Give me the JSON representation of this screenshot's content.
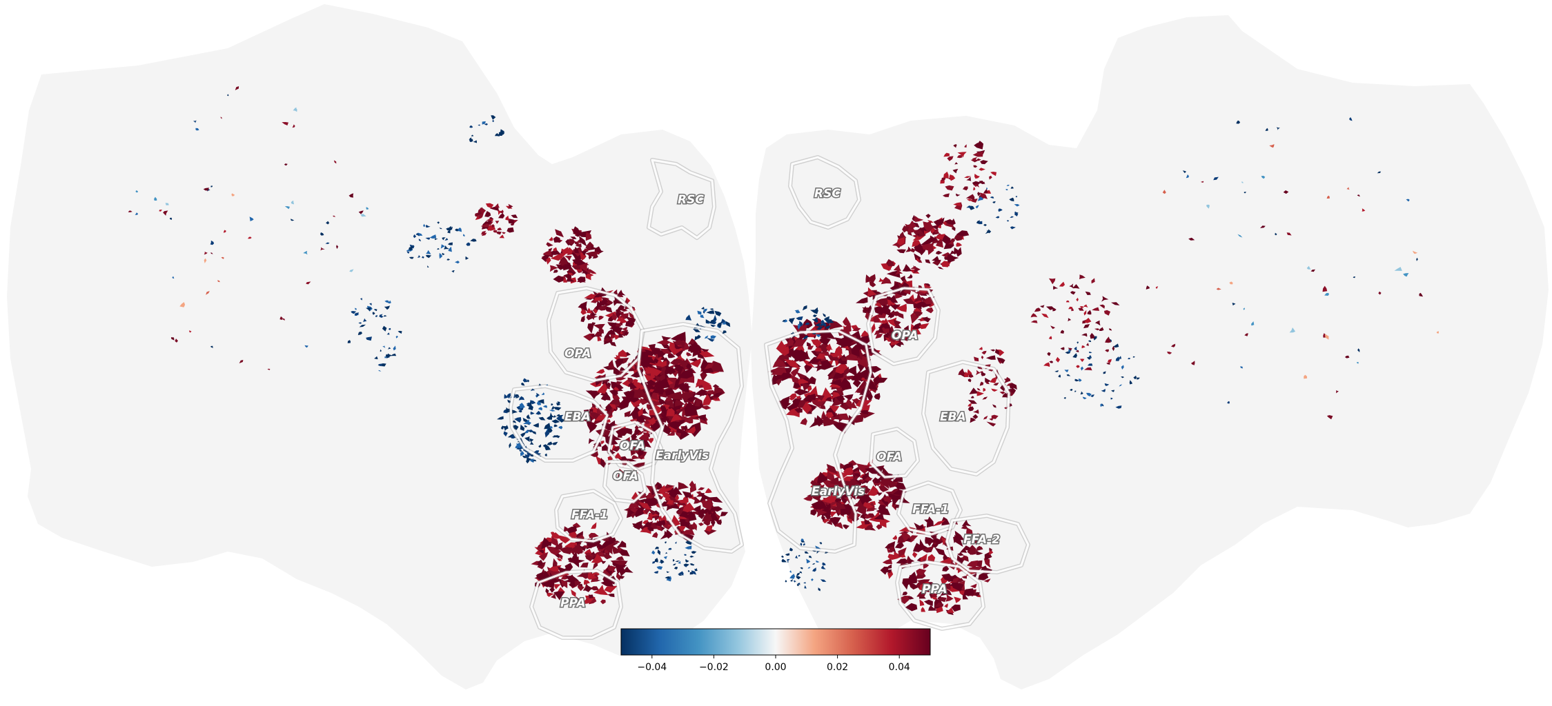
{
  "figure": {
    "background": "#ffffff",
    "cortex_fill": "#f4f4f4"
  },
  "rois": {
    "left_hemisphere": [
      "RSC",
      "OPA",
      "EBA",
      "OFA",
      "OFA",
      "EarlyVis",
      "FFA-1",
      "PPA"
    ],
    "right_hemisphere": [
      "RSC",
      "OPA",
      "EBA",
      "OFA",
      "EarlyVis",
      "FFA-1",
      "FFA-2",
      "PPA"
    ]
  },
  "colorbar": {
    "colormap": "RdBu_r",
    "vmin": -0.05,
    "vmax": 0.05,
    "tick_values": [
      -0.04,
      -0.02,
      0.0,
      0.02,
      0.04
    ],
    "tick_labels": [
      "−0.04",
      "−0.02",
      "0.00",
      "0.02",
      "0.04"
    ],
    "colors": {
      "low": "#053061",
      "mid_low": "#4393c3",
      "mid": "#f7f7f7",
      "mid_high": "#d6604d",
      "high": "#67001f"
    }
  }
}
